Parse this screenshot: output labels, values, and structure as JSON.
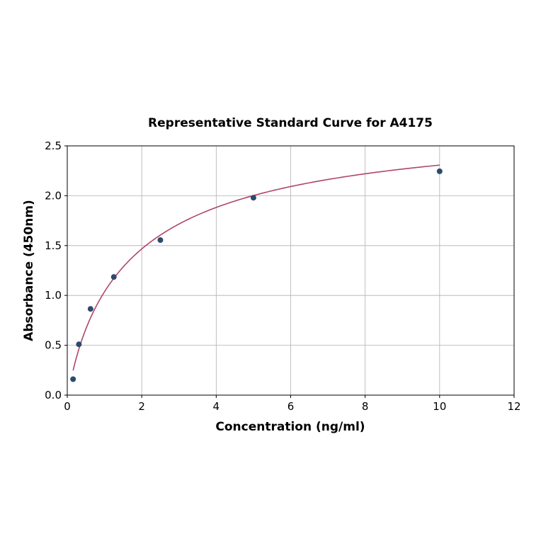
{
  "chart_data": {
    "type": "scatter",
    "title": "Representative Standard Curve for A4175",
    "xlabel": "Concentration (ng/ml)",
    "ylabel": "Absorbance (450nm)",
    "xlim": [
      0,
      12
    ],
    "ylim": [
      0,
      2.5
    ],
    "xticks": [
      "0",
      "2",
      "4",
      "6",
      "8",
      "10",
      "12"
    ],
    "yticks": [
      "0.0",
      "0.5",
      "1.0",
      "1.5",
      "2.0",
      "2.5"
    ],
    "grid": true,
    "points": {
      "x": [
        0.156,
        0.312,
        0.625,
        1.25,
        2.5,
        5,
        10
      ],
      "y": [
        0.16,
        0.51,
        0.865,
        1.185,
        1.555,
        1.98,
        2.245
      ]
    },
    "fit_curve": true,
    "colors": {
      "points": "#2e4a6b",
      "curve": "#b0466a",
      "grid": "#b0b0b0"
    }
  }
}
